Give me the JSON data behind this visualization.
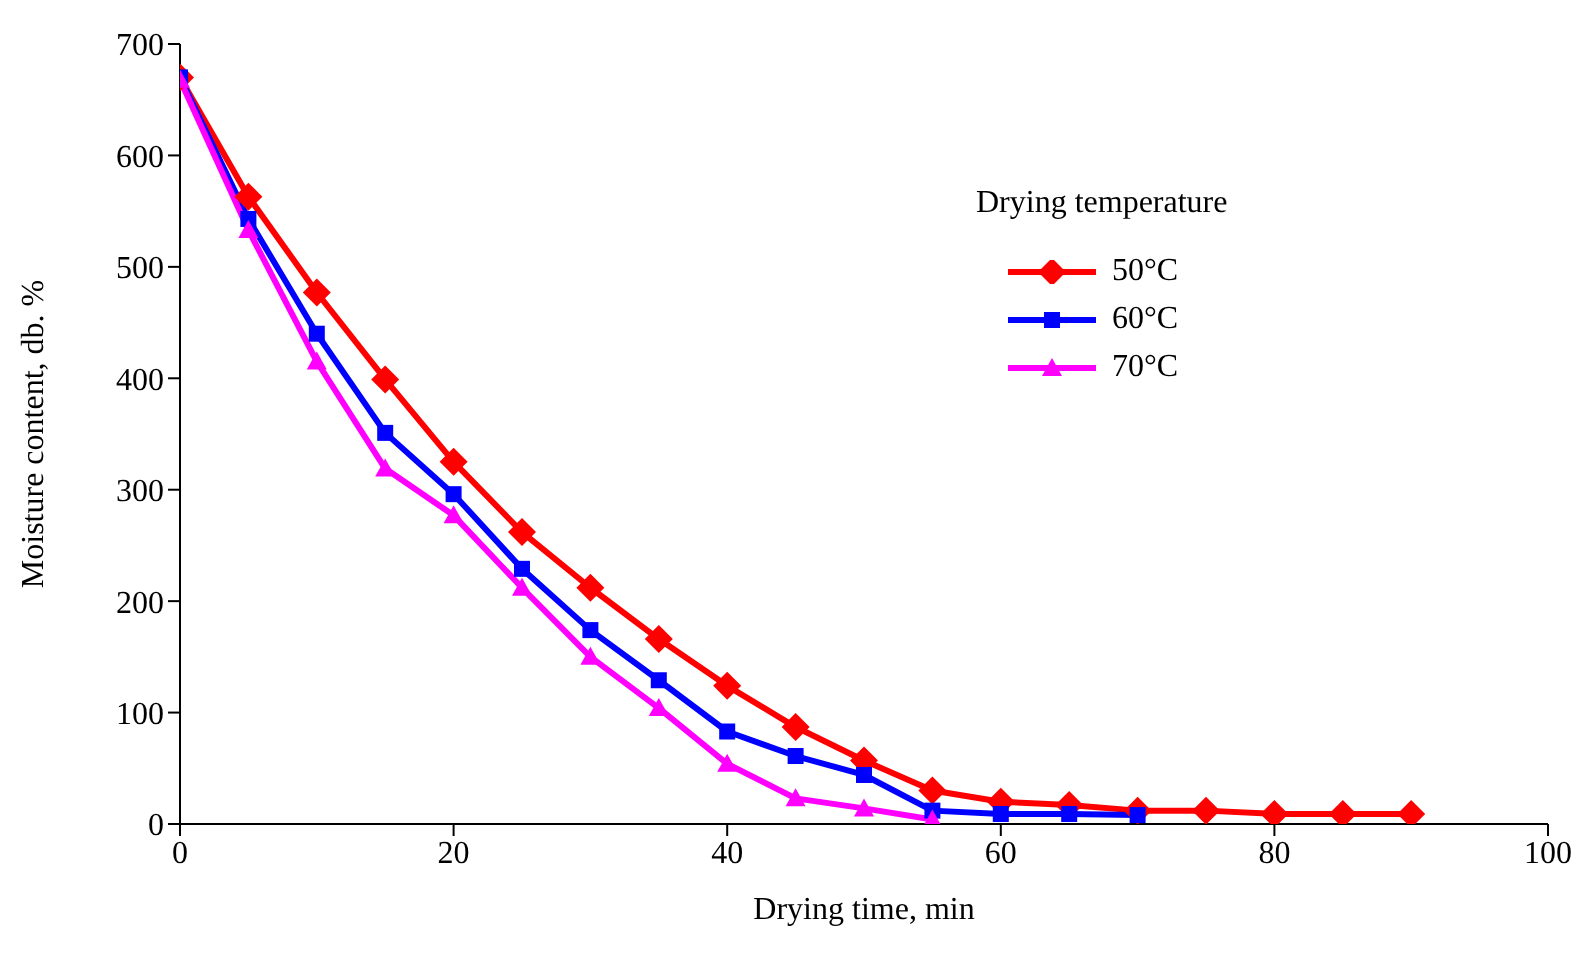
{
  "chart_data": {
    "type": "line",
    "xlabel": "Drying time,  min",
    "ylabel": "Moisture content, db. %",
    "legend_title": "Drying temperature",
    "legend": "right",
    "grid": false,
    "xlim": [
      0,
      100
    ],
    "xticks": [
      0,
      20,
      40,
      60,
      80,
      100
    ],
    "ylim": [
      0,
      700
    ],
    "yticks": [
      0,
      100,
      200,
      300,
      400,
      500,
      600,
      700
    ],
    "series": [
      {
        "name": "50°C",
        "color": "#ff0000",
        "marker": "diamond",
        "x": [
          0,
          5,
          10,
          15,
          20,
          25,
          30,
          35,
          40,
          45,
          50,
          55,
          60,
          65,
          70,
          75,
          80,
          85,
          90
        ],
        "values": [
          670,
          563,
          477,
          399,
          325,
          262,
          212,
          166,
          124,
          87,
          57,
          30,
          20,
          17,
          12,
          12,
          9,
          9,
          9
        ]
      },
      {
        "name": "60°C",
        "color": "#0000ff",
        "marker": "square",
        "x": [
          0,
          5,
          10,
          15,
          20,
          25,
          30,
          35,
          40,
          45,
          50,
          55,
          60,
          65,
          70
        ],
        "values": [
          670,
          543,
          440,
          351,
          296,
          229,
          174,
          129,
          83,
          61,
          44,
          12,
          9,
          9,
          8
        ]
      },
      {
        "name": "70°C",
        "color": "#ff00ff",
        "marker": "triangle",
        "x": [
          0,
          5,
          10,
          15,
          20,
          25,
          30,
          35,
          40,
          45,
          50,
          55
        ],
        "values": [
          668,
          533,
          415,
          319,
          277,
          212,
          150,
          104,
          54,
          23,
          14,
          4
        ]
      }
    ]
  }
}
